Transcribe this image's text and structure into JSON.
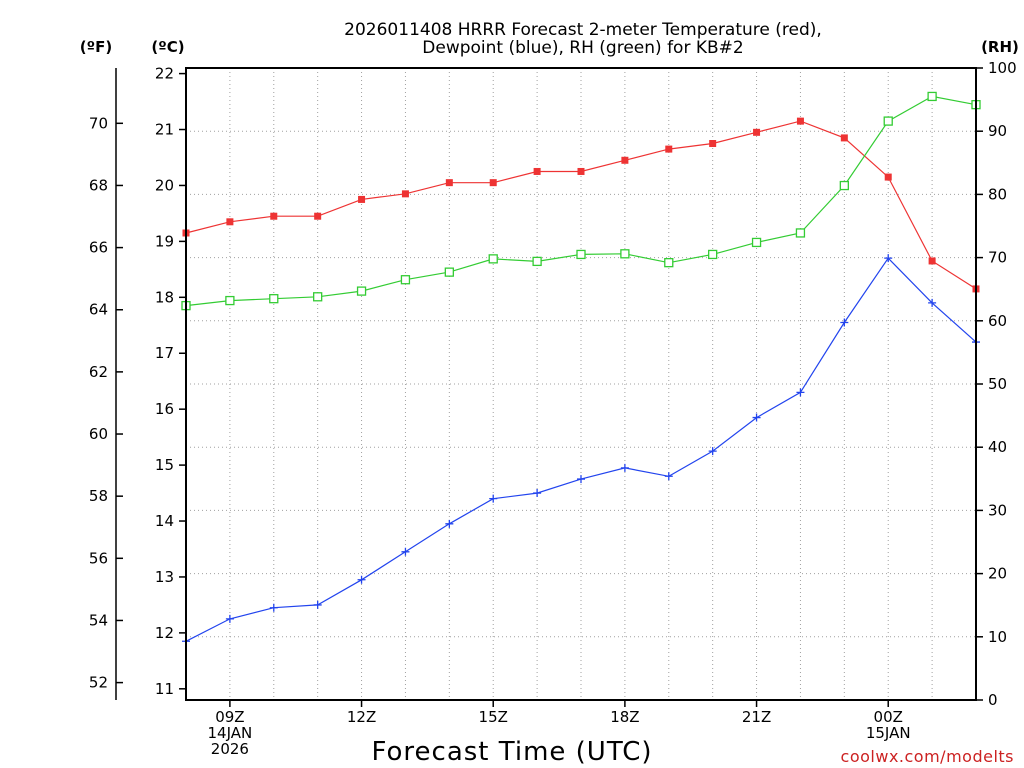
{
  "chart_data": {
    "type": "line",
    "title": [
      "2026011408 HRRR Forecast 2-meter Temperature (red),",
      "Dewpoint (blue), RH (green) for KB#2"
    ],
    "xlabel": "Forecast Time (UTC)",
    "credit": "coolwx.com/modelts",
    "x_ticks": [
      {
        "hour": 1,
        "lines": [
          "09Z",
          "14JAN",
          "2026"
        ]
      },
      {
        "hour": 4,
        "lines": [
          "12Z"
        ]
      },
      {
        "hour": 7,
        "lines": [
          "15Z"
        ]
      },
      {
        "hour": 10,
        "lines": [
          "18Z"
        ]
      },
      {
        "hour": 13,
        "lines": [
          "21Z"
        ]
      },
      {
        "hour": 16,
        "lines": [
          "00Z",
          "15JAN"
        ]
      }
    ],
    "x_range": [
      0,
      18
    ],
    "hours": [
      0,
      1,
      2,
      3,
      4,
      5,
      6,
      7,
      8,
      9,
      10,
      11,
      12,
      13,
      14,
      15,
      16,
      17,
      18
    ],
    "axes": {
      "celsius": {
        "label": "(ºC)",
        "range": [
          10.8,
          22.1
        ],
        "ticks": [
          11,
          12,
          13,
          14,
          15,
          16,
          17,
          18,
          19,
          20,
          21,
          22
        ]
      },
      "fahrenheit": {
        "label": "(ºF)",
        "ticks": [
          52,
          54,
          56,
          58,
          60,
          62,
          64,
          66,
          68,
          70
        ]
      },
      "rh": {
        "label": "(RH)",
        "range": [
          0,
          100
        ],
        "ticks": [
          0,
          10,
          20,
          30,
          40,
          50,
          60,
          70,
          80,
          90,
          100
        ]
      }
    },
    "series": [
      {
        "name": "2-meter Temperature",
        "color": "#ee3333",
        "marker": "filled-square",
        "axis": "celsius",
        "values": [
          19.15,
          19.35,
          19.45,
          19.45,
          19.75,
          19.85,
          20.05,
          20.05,
          20.25,
          20.25,
          20.45,
          20.65,
          20.75,
          20.95,
          21.15,
          20.85,
          20.15,
          18.65,
          18.15
        ]
      },
      {
        "name": "Dewpoint",
        "color": "#2244ee",
        "marker": "plus",
        "axis": "celsius",
        "values": [
          11.85,
          12.25,
          12.45,
          12.5,
          12.95,
          13.45,
          13.95,
          14.4,
          14.5,
          14.75,
          14.95,
          14.8,
          15.25,
          15.85,
          16.3,
          17.55,
          18.7,
          17.9,
          17.2
        ]
      },
      {
        "name": "Relative Humidity",
        "color": "#33cc33",
        "marker": "open-square",
        "axis": "rh",
        "values": [
          62.4,
          63.2,
          63.5,
          63.8,
          64.7,
          66.5,
          67.7,
          69.8,
          69.4,
          70.5,
          70.6,
          69.2,
          70.5,
          72.4,
          73.9,
          81.4,
          91.6,
          95.5,
          94.2
        ]
      }
    ]
  }
}
